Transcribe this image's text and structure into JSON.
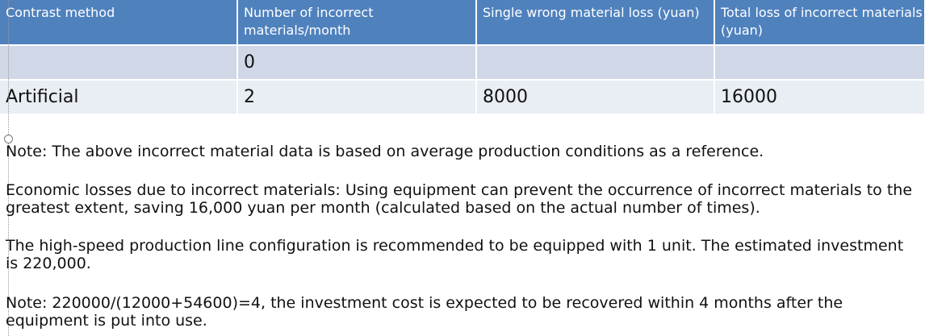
{
  "table": {
    "header": [
      "Contrast method",
      "Number of incorrect materials/month",
      "Single wrong material loss (yuan)",
      "Total loss of incorrect materials (yuan)"
    ],
    "rows": [
      [
        null,
        "0",
        null,
        null
      ],
      [
        "Artificial",
        "2",
        "8000",
        "16000"
      ]
    ]
  },
  "notes": [
    "Note: The above incorrect material data is based on average production conditions as a reference.",
    "Economic losses due to incorrect materials: Using equipment can prevent the occurrence of incorrect materials to the greatest extent, saving 16,000 yuan per month (calculated based on the actual number of times).",
    "The high-speed production line configuration is recommended to be equipped with 1 unit. The estimated investment is 220,000.",
    "Note: 220000/(12000+54600)=4, the investment cost is expected to be recovered within 4 months after the equipment is put into use."
  ]
}
